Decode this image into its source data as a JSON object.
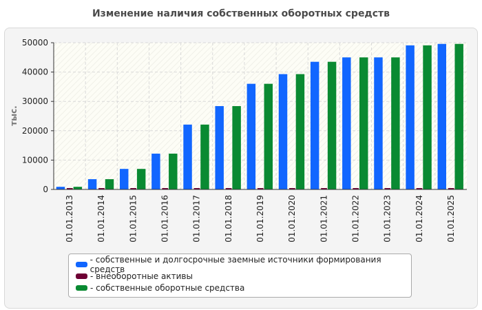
{
  "chart_data": {
    "type": "bar",
    "title": "Изменение наличия собственных оборотных средств",
    "ylabel": "тыс.",
    "xlabel": "",
    "ylim": [
      0,
      50000
    ],
    "yticks": [
      0,
      10000,
      20000,
      30000,
      40000,
      50000
    ],
    "categories": [
      "01.01.2013",
      "01.01.2014",
      "01.01.2015",
      "01.01.2016",
      "01.01.2017",
      "01.01.2018",
      "01.01.2019",
      "01.01.2020",
      "01.01.2021",
      "01.01.2022",
      "01.01.2023",
      "01.01.2024",
      "01.01.2025"
    ],
    "series": [
      {
        "name": "- собственные и долгосрочные заемные источники формирования средств",
        "color": "#1166ff",
        "values": [
          900,
          3500,
          7000,
          12200,
          22100,
          28400,
          36000,
          39300,
          43500,
          45000,
          45000,
          49100,
          49600
        ]
      },
      {
        "name": "- внеоборотные активы",
        "color": "#6e0034",
        "values": [
          200,
          200,
          200,
          200,
          200,
          200,
          200,
          200,
          200,
          200,
          200,
          200,
          200
        ]
      },
      {
        "name": "- собственные оборотные средства",
        "color": "#0a8a32",
        "values": [
          900,
          3500,
          7000,
          12200,
          22100,
          28400,
          36000,
          39300,
          43500,
          45000,
          45000,
          49100,
          49600
        ]
      }
    ],
    "grid": true,
    "legend_position": "bottom"
  }
}
